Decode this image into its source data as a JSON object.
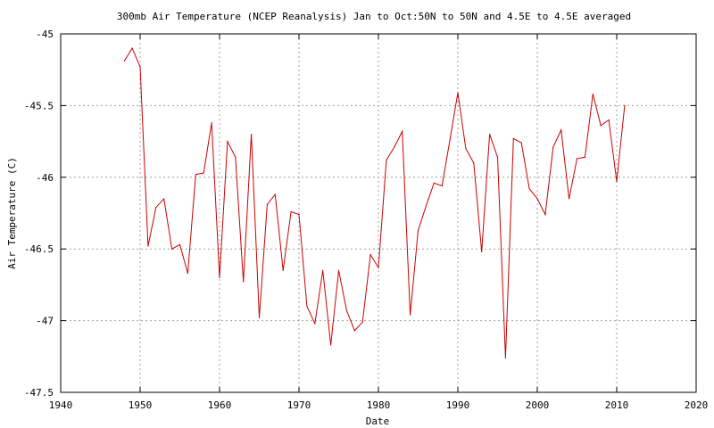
{
  "chart_data": {
    "type": "line",
    "title": "300mb Air Temperature (NCEP Reanalysis) Jan to Oct:50N to 50N and 4.5E to 4.5E averaged",
    "xlabel": "Date",
    "ylabel": "Air Temperature (C)",
    "xlim": [
      1940,
      2020
    ],
    "ylim": [
      -47.5,
      -45
    ],
    "xticks": [
      "1940",
      "1950",
      "1960",
      "1970",
      "1980",
      "1990",
      "2000",
      "2010",
      "2020"
    ],
    "yticks": [
      "-45",
      "-45.5",
      "-46",
      "-46.5",
      "-47",
      "-47.5"
    ],
    "grid": true,
    "line_color": "#cc0000",
    "series": [
      {
        "x": [
          1948,
          1949,
          1950,
          1951,
          1952,
          1953,
          1954,
          1955,
          1956,
          1957,
          1958,
          1959,
          1960,
          1961,
          1962,
          1963,
          1964,
          1965,
          1966,
          1967,
          1968,
          1969,
          1970,
          1971,
          1972,
          1973,
          1974,
          1975,
          1976,
          1977,
          1978,
          1979,
          1980,
          1981,
          1982,
          1983,
          1984,
          1985,
          1986,
          1987,
          1988,
          1989,
          1990,
          1991,
          1992,
          1993,
          1994,
          1995,
          1996,
          1997,
          1998,
          1999,
          2000,
          2001,
          2002,
          2003,
          2004,
          2005,
          2006,
          2007,
          2008,
          2009,
          2010,
          2011
        ],
        "y": [
          -45.19,
          -45.1,
          -45.23,
          -46.48,
          -46.21,
          -46.15,
          -46.5,
          -46.47,
          -46.67,
          -45.98,
          -45.97,
          -45.62,
          -46.7,
          -45.75,
          -45.86,
          -46.73,
          -45.7,
          -46.98,
          -46.19,
          -46.12,
          -46.65,
          -46.24,
          -46.26,
          -46.9,
          -47.02,
          -46.65,
          -47.17,
          -46.65,
          -46.93,
          -47.07,
          -47.01,
          -46.54,
          -46.63,
          -45.88,
          -45.79,
          -45.68,
          -46.96,
          -46.37,
          -46.2,
          -46.04,
          -46.06,
          -45.74,
          -45.41,
          -45.8,
          -45.9,
          -46.52,
          -45.7,
          -45.86,
          -47.26,
          -45.73,
          -45.76,
          -46.08,
          -46.15,
          -46.26,
          -45.79,
          -45.67,
          -46.15,
          -45.87,
          -45.86,
          -45.42,
          -45.64,
          -45.6,
          -46.03,
          -45.5
        ]
      }
    ]
  }
}
